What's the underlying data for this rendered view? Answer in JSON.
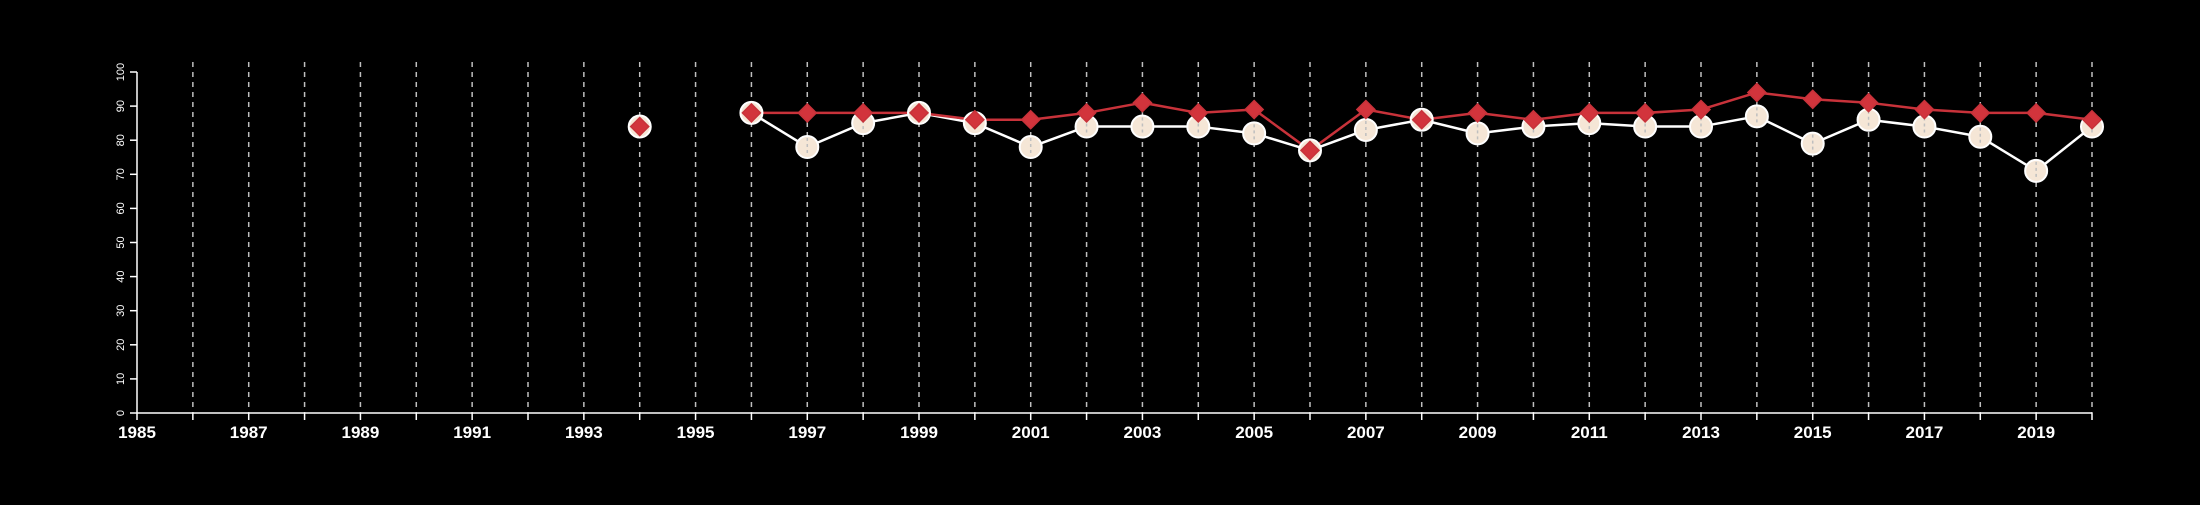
{
  "chart_data": {
    "type": "line",
    "title": "",
    "xlabel": "",
    "ylabel": "",
    "xlim": [
      1985,
      2020
    ],
    "ylim": [
      0,
      100
    ],
    "x_ticks": [
      1985,
      1987,
      1989,
      1991,
      1993,
      1995,
      1997,
      1999,
      2001,
      2003,
      2005,
      2007,
      2009,
      2011,
      2013,
      2015,
      2017,
      2019
    ],
    "y_ticks": [
      0,
      10,
      20,
      30,
      40,
      50,
      60,
      70,
      80,
      90,
      100
    ],
    "grid": "vertical dashed at every year",
    "legend": "none",
    "colors": {
      "background": "#000000",
      "axis": "#ffffff",
      "grid": "#bfbfbf",
      "series_a_line": "#ffffff",
      "series_a_fill": "#f5e6d6",
      "series_b_line": "#c8323a",
      "series_b_fill": "#d2343c"
    },
    "series": [
      {
        "marker": "circle",
        "points": [
          [
            1994,
            84
          ],
          [
            1996,
            88
          ],
          [
            1997,
            78
          ],
          [
            1998,
            85
          ],
          [
            1999,
            88
          ],
          [
            2000,
            85
          ],
          [
            2001,
            78
          ],
          [
            2002,
            84
          ],
          [
            2003,
            84
          ],
          [
            2004,
            84
          ],
          [
            2005,
            82
          ],
          [
            2006,
            77
          ],
          [
            2007,
            83
          ],
          [
            2008,
            86
          ],
          [
            2009,
            82
          ],
          [
            2010,
            84
          ],
          [
            2011,
            85
          ],
          [
            2012,
            84
          ],
          [
            2013,
            84
          ],
          [
            2014,
            87
          ],
          [
            2015,
            79
          ],
          [
            2016,
            86
          ],
          [
            2017,
            84
          ],
          [
            2018,
            81
          ],
          [
            2019,
            71
          ],
          [
            2020,
            84
          ]
        ]
      },
      {
        "marker": "diamond",
        "points": [
          [
            1994,
            84
          ],
          [
            1996,
            88
          ],
          [
            1997,
            88
          ],
          [
            1998,
            88
          ],
          [
            1999,
            88
          ],
          [
            2000,
            86
          ],
          [
            2001,
            86
          ],
          [
            2002,
            88
          ],
          [
            2003,
            91
          ],
          [
            2004,
            88
          ],
          [
            2005,
            89
          ],
          [
            2006,
            77
          ],
          [
            2007,
            89
          ],
          [
            2008,
            86
          ],
          [
            2009,
            88
          ],
          [
            2010,
            86
          ],
          [
            2011,
            88
          ],
          [
            2012,
            88
          ],
          [
            2013,
            89
          ],
          [
            2014,
            94
          ],
          [
            2015,
            92
          ],
          [
            2016,
            91
          ],
          [
            2017,
            89
          ],
          [
            2018,
            88
          ],
          [
            2019,
            88
          ],
          [
            2020,
            86
          ]
        ]
      }
    ]
  }
}
